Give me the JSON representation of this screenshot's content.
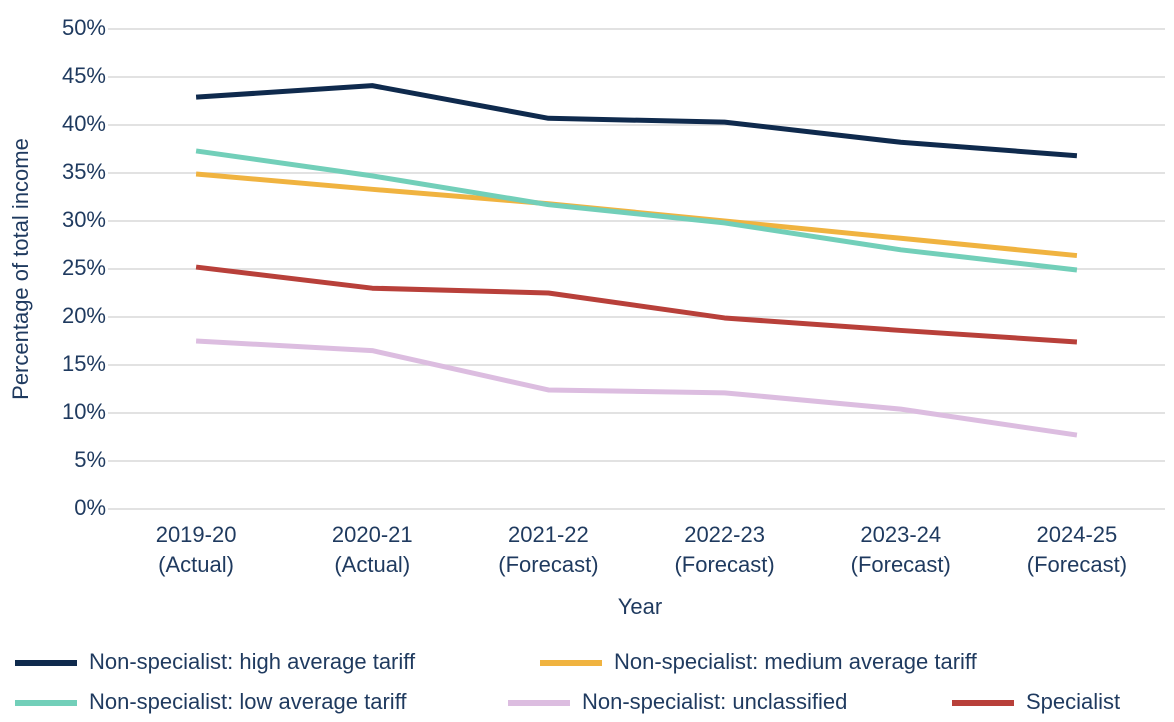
{
  "chart_data": {
    "type": "line",
    "x_label": "Year",
    "y_label": "Percentage of total income",
    "categories": [
      "2019-20 (Actual)",
      "2020-21 (Actual)",
      "2021-22 (Forecast)",
      "2022-23 (Forecast)",
      "2023-24 (Forecast)",
      "2024-25 (Forecast)"
    ],
    "series": [
      {
        "name": "Non-specialist: high average tariff",
        "color": "#0f2a4d",
        "values": [
          42.9,
          44.1,
          40.7,
          40.3,
          38.2,
          36.8
        ]
      },
      {
        "name": "Non-specialist: medium average tariff",
        "color": "#f0b340",
        "values": [
          34.9,
          33.3,
          31.8,
          30.0,
          28.2,
          26.4
        ]
      },
      {
        "name": "Non-specialist: low average tariff",
        "color": "#72cfb9",
        "values": [
          37.3,
          34.7,
          31.7,
          29.8,
          27.0,
          24.9
        ]
      },
      {
        "name": "Non-specialist: unclassified",
        "color": "#dcbde0",
        "values": [
          17.5,
          16.5,
          12.4,
          12.1,
          10.4,
          7.7
        ]
      },
      {
        "name": "Specialist",
        "color": "#b8403a",
        "values": [
          25.2,
          23.0,
          22.5,
          19.9,
          18.6,
          17.4
        ]
      }
    ],
    "ylim": [
      0,
      50
    ],
    "yticks": [
      {
        "value": 0,
        "label": "0%"
      },
      {
        "value": 5,
        "label": "5%"
      },
      {
        "value": 10,
        "label": "10%"
      },
      {
        "value": 15,
        "label": "15%"
      },
      {
        "value": 20,
        "label": "20%"
      },
      {
        "value": 25,
        "label": "25%"
      },
      {
        "value": 30,
        "label": "30%"
      },
      {
        "value": 35,
        "label": "35%"
      },
      {
        "value": 40,
        "label": "40%"
      },
      {
        "value": 45,
        "label": "45%"
      },
      {
        "value": 50,
        "label": "50%"
      }
    ],
    "grid": true,
    "legend": "bottom"
  }
}
